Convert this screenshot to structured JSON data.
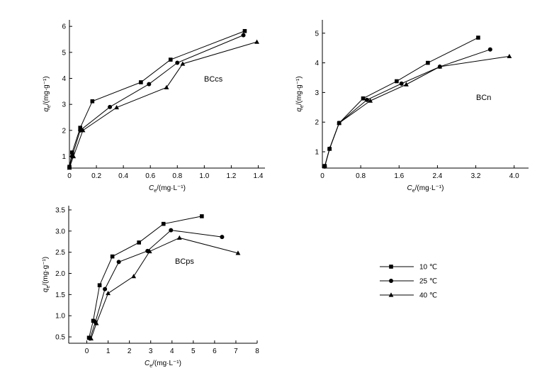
{
  "chart_data": [
    {
      "type": "line",
      "title": "BCcs",
      "xlabel": {
        "var": "C",
        "sub": "e",
        "unit": "/(mg·L⁻¹)"
      },
      "ylabel": {
        "var": "q",
        "sub": "e",
        "unit": "/(mg·g⁻¹)"
      },
      "xlim": [
        0,
        1.45
      ],
      "ylim": [
        0.55,
        6.25
      ],
      "xticks": [
        0,
        0.2,
        0.4,
        0.6,
        0.8,
        1.0,
        1.2,
        1.4
      ],
      "xtick_labels": [
        "0",
        "0.2",
        "0.4",
        "0.6",
        "0.8",
        "1.0",
        "1.2",
        "1.4"
      ],
      "yticks": [
        1,
        2,
        3,
        4,
        5,
        6
      ],
      "ytick_labels": [
        "1",
        "2",
        "3",
        "4",
        "5",
        "6"
      ],
      "series": [
        {
          "name": "10 ℃",
          "marker": "square",
          "points": [
            [
              0.0,
              0.6
            ],
            [
              0.02,
              1.15
            ],
            [
              0.08,
              2.1
            ],
            [
              0.17,
              3.12
            ],
            [
              0.53,
              3.85
            ],
            [
              0.75,
              4.72
            ],
            [
              1.3,
              5.82
            ]
          ]
        },
        {
          "name": "25 ℃",
          "marker": "circle",
          "points": [
            [
              0.0,
              0.58
            ],
            [
              0.02,
              1.0
            ],
            [
              0.08,
              2.0
            ],
            [
              0.3,
              2.9
            ],
            [
              0.59,
              3.78
            ],
            [
              0.8,
              4.6
            ],
            [
              1.29,
              5.66
            ]
          ]
        },
        {
          "name": "40 ℃",
          "marker": "triangle",
          "points": [
            [
              0.0,
              0.56
            ],
            [
              0.03,
              1.0
            ],
            [
              0.1,
              2.0
            ],
            [
              0.35,
              2.88
            ],
            [
              0.72,
              3.65
            ],
            [
              0.84,
              4.56
            ],
            [
              1.39,
              5.4
            ]
          ]
        }
      ]
    },
    {
      "type": "line",
      "title": "BCn",
      "xlabel": {
        "var": "C",
        "sub": "e",
        "unit": "/(mg·L⁻¹)"
      },
      "ylabel": {
        "var": "q",
        "sub": "e",
        "unit": "/(mg·g⁻¹)"
      },
      "xlim": [
        0,
        4.3
      ],
      "ylim": [
        0.45,
        5.45
      ],
      "xticks": [
        0,
        0.8,
        1.6,
        2.4,
        3.2,
        4.0
      ],
      "xtick_labels": [
        "0",
        "0.8",
        "1.6",
        "2.4",
        "3.2",
        "4.0"
      ],
      "yticks": [
        1,
        2,
        3,
        4,
        5
      ],
      "ytick_labels": [
        "1",
        "2",
        "3",
        "4",
        "5"
      ],
      "series": [
        {
          "name": "10 ℃",
          "marker": "square",
          "points": [
            [
              0.05,
              0.52
            ],
            [
              0.15,
              1.1
            ],
            [
              0.35,
              1.97
            ],
            [
              0.85,
              2.8
            ],
            [
              1.55,
              3.38
            ],
            [
              2.2,
              4.0
            ],
            [
              3.25,
              4.85
            ]
          ]
        },
        {
          "name": "25 ℃",
          "marker": "circle",
          "points": [
            [
              0.05,
              0.5
            ],
            [
              0.15,
              1.1
            ],
            [
              0.35,
              1.97
            ],
            [
              0.93,
              2.75
            ],
            [
              1.65,
              3.3
            ],
            [
              2.45,
              3.87
            ],
            [
              3.5,
              4.45
            ]
          ]
        },
        {
          "name": "40 ℃",
          "marker": "triangle",
          "points": [
            [
              0.05,
              0.5
            ],
            [
              0.15,
              1.1
            ],
            [
              0.35,
              1.97
            ],
            [
              1.0,
              2.72
            ],
            [
              1.75,
              3.27
            ],
            [
              2.45,
              3.87
            ],
            [
              3.9,
              4.22
            ]
          ]
        }
      ]
    },
    {
      "type": "line",
      "title": "BCps",
      "xlabel": {
        "var": "C",
        "sub": "e",
        "unit": "/(mg·L⁻¹)"
      },
      "ylabel": {
        "var": "q",
        "sub": "e",
        "unit": "/(mg·g⁻¹)"
      },
      "xlim": [
        -0.85,
        8.0
      ],
      "ylim": [
        0.35,
        3.6
      ],
      "xticks": [
        0,
        1,
        2,
        3,
        4,
        5,
        6,
        7,
        8
      ],
      "xtick_labels": [
        "0",
        "1",
        "2",
        "3",
        "4",
        "5",
        "6",
        "7",
        "8"
      ],
      "yticks": [
        0.5,
        1.0,
        1.5,
        2.0,
        2.5,
        3.0,
        3.5
      ],
      "ytick_labels": [
        "0.5",
        "1.0",
        "1.5",
        "2.0",
        "2.5",
        "3.0",
        "3.5"
      ],
      "series": [
        {
          "name": "10 ℃",
          "marker": "square",
          "points": [
            [
              0.1,
              0.48
            ],
            [
              0.3,
              0.88
            ],
            [
              0.6,
              1.72
            ],
            [
              1.2,
              2.4
            ],
            [
              2.45,
              2.73
            ],
            [
              3.6,
              3.17
            ],
            [
              5.4,
              3.35
            ]
          ]
        },
        {
          "name": "25 ℃",
          "marker": "circle",
          "points": [
            [
              0.15,
              0.46
            ],
            [
              0.4,
              0.85
            ],
            [
              0.85,
              1.63
            ],
            [
              1.5,
              2.27
            ],
            [
              2.85,
              2.53
            ],
            [
              3.95,
              3.02
            ],
            [
              6.35,
              2.86
            ]
          ]
        },
        {
          "name": "40 ℃",
          "marker": "triangle",
          "points": [
            [
              0.2,
              0.46
            ],
            [
              0.45,
              0.82
            ],
            [
              1.0,
              1.53
            ],
            [
              2.2,
              1.93
            ],
            [
              2.95,
              2.52
            ],
            [
              4.35,
              2.84
            ],
            [
              7.1,
              2.48
            ]
          ]
        }
      ]
    }
  ],
  "legend": {
    "entries": [
      {
        "label": "10 ℃",
        "marker": "square"
      },
      {
        "label": "25 ℃",
        "marker": "circle"
      },
      {
        "label": "40 ℃",
        "marker": "triangle"
      }
    ]
  }
}
